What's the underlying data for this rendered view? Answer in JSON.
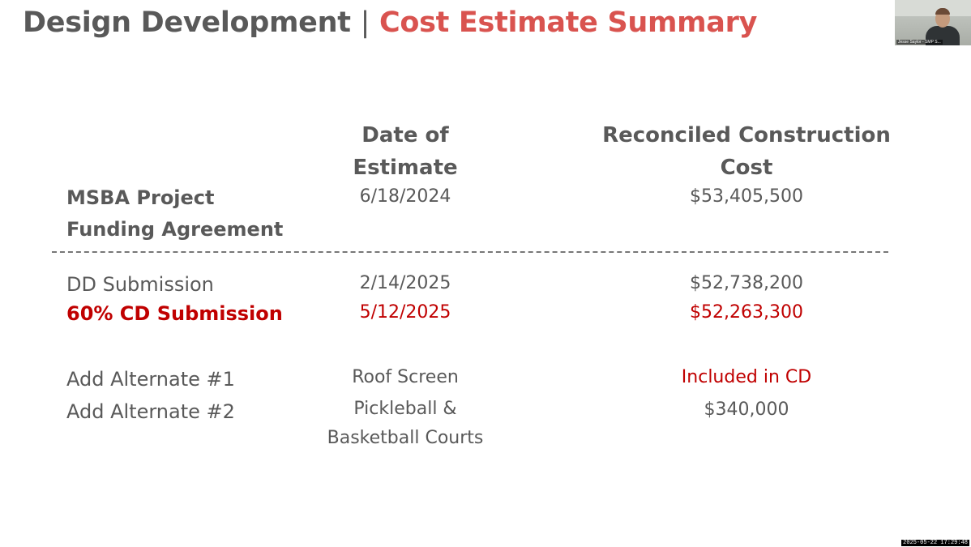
{
  "slide": {
    "title_main": "Design Development",
    "title_sep": "|",
    "title_accent": "Cost Estimate Summary"
  },
  "headers": {
    "date": "Date of Estimate",
    "cost": "Reconciled Construction Cost"
  },
  "rows": [
    {
      "label": "MSBA Project Funding Agreement",
      "date": "6/18/2024",
      "cost": "$53,405,500"
    },
    {
      "label": "DD Submission",
      "date": "2/14/2025",
      "cost": "$52,738,200"
    },
    {
      "label": "60% CD Submission",
      "date": "5/12/2025",
      "cost": "$52,263,300"
    },
    {
      "label": "Add Alternate #1",
      "date": "Roof Screen",
      "cost": "Included in CD"
    },
    {
      "label": "Add Alternate #2",
      "date": "Pickleball & Basketball Courts",
      "cost": "$340,000"
    }
  ],
  "participant": {
    "name": "Jesse Saylor - SMP S..."
  },
  "recording": {
    "timestamp": "2025-05-22 17:29:48"
  },
  "colors": {
    "title_accent": "#d9534f",
    "highlight_red": "#c00000",
    "text_gray": "#595959"
  }
}
